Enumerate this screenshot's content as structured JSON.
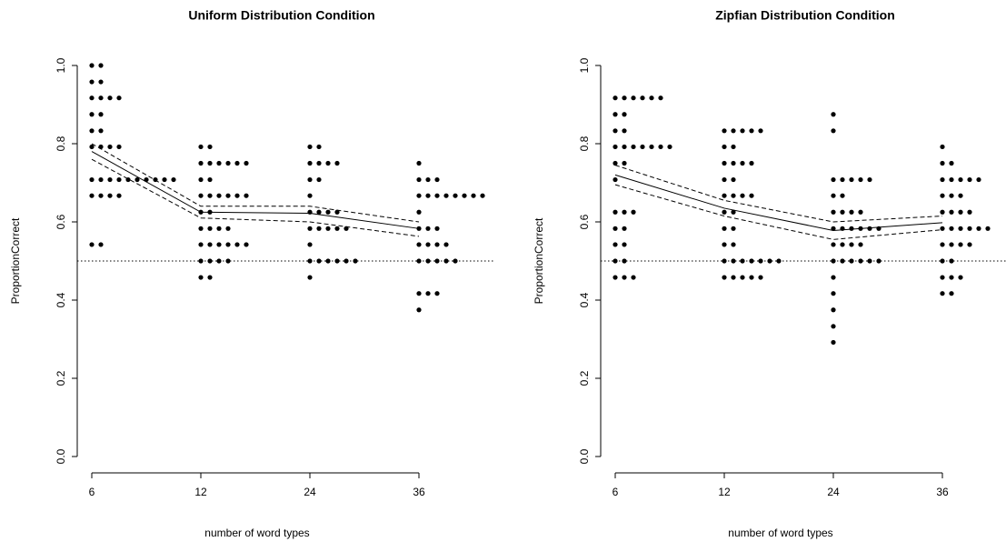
{
  "chart_data": [
    {
      "type": "dotplot",
      "title": "Uniform Distribution Condition",
      "xlabel": "number of word types",
      "ylabel": "ProportionCorrect",
      "categories": [
        "6",
        "12",
        "24",
        "36"
      ],
      "points": [
        [
          1.0,
          1.0,
          0.958,
          0.958,
          0.917,
          0.917,
          0.917,
          0.917,
          0.875,
          0.875,
          0.833,
          0.833,
          0.792,
          0.792,
          0.792,
          0.792,
          0.708,
          0.708,
          0.708,
          0.708,
          0.708,
          0.708,
          0.708,
          0.708,
          0.708,
          0.708,
          0.667,
          0.667,
          0.667,
          0.667,
          0.542,
          0.542
        ],
        [
          0.792,
          0.792,
          0.75,
          0.75,
          0.75,
          0.75,
          0.75,
          0.75,
          0.708,
          0.708,
          0.667,
          0.667,
          0.667,
          0.667,
          0.667,
          0.667,
          0.625,
          0.625,
          0.583,
          0.583,
          0.583,
          0.583,
          0.542,
          0.542,
          0.542,
          0.542,
          0.542,
          0.542,
          0.5,
          0.5,
          0.5,
          0.5,
          0.458,
          0.458
        ],
        [
          0.792,
          0.792,
          0.75,
          0.75,
          0.75,
          0.75,
          0.708,
          0.708,
          0.667,
          0.625,
          0.625,
          0.625,
          0.625,
          0.583,
          0.583,
          0.583,
          0.583,
          0.583,
          0.542,
          0.5,
          0.5,
          0.5,
          0.5,
          0.5,
          0.5,
          0.458
        ],
        [
          0.75,
          0.708,
          0.708,
          0.708,
          0.667,
          0.667,
          0.667,
          0.667,
          0.667,
          0.667,
          0.667,
          0.667,
          0.625,
          0.583,
          0.583,
          0.583,
          0.542,
          0.542,
          0.542,
          0.542,
          0.5,
          0.5,
          0.5,
          0.5,
          0.5,
          0.417,
          0.417,
          0.417,
          0.375
        ]
      ],
      "lines": [
        {
          "values": [
            0.78,
            0.625,
            0.622,
            0.583
          ],
          "style": "solid"
        },
        {
          "values": [
            0.8,
            0.64,
            0.64,
            0.6
          ],
          "style": "dashed"
        },
        {
          "values": [
            0.76,
            0.61,
            0.6,
            0.563
          ],
          "style": "dashed"
        }
      ],
      "reference_line": 0.5,
      "color": "#000000",
      "ylim": [
        0,
        1
      ],
      "yticks": [
        {
          "value": 0,
          "label": "0.0"
        },
        0.2,
        0.4,
        0.6,
        0.8,
        {
          "value": 1,
          "label": "1.0"
        }
      ]
    },
    {
      "type": "dotplot",
      "title": "Zipfian Distribution Condition",
      "xlabel": "number of word types",
      "ylabel": "ProportionCorrect",
      "categories": [
        "6",
        "12",
        "24",
        "36"
      ],
      "points": [
        [
          0.917,
          0.917,
          0.917,
          0.917,
          0.917,
          0.917,
          0.875,
          0.875,
          0.833,
          0.833,
          0.792,
          0.792,
          0.792,
          0.792,
          0.792,
          0.792,
          0.792,
          0.75,
          0.75,
          0.708,
          0.625,
          0.625,
          0.625,
          0.583,
          0.583,
          0.542,
          0.542,
          0.5,
          0.5,
          0.458,
          0.458,
          0.458
        ],
        [
          0.833,
          0.833,
          0.833,
          0.833,
          0.833,
          0.792,
          0.792,
          0.75,
          0.75,
          0.75,
          0.75,
          0.708,
          0.708,
          0.667,
          0.667,
          0.667,
          0.667,
          0.625,
          0.625,
          0.583,
          0.583,
          0.542,
          0.542,
          0.5,
          0.5,
          0.5,
          0.5,
          0.5,
          0.5,
          0.5,
          0.458,
          0.458,
          0.458,
          0.458,
          0.458
        ],
        [
          0.875,
          0.833,
          0.708,
          0.708,
          0.708,
          0.708,
          0.708,
          0.667,
          0.667,
          0.625,
          0.625,
          0.625,
          0.625,
          0.583,
          0.583,
          0.583,
          0.583,
          0.583,
          0.583,
          0.542,
          0.542,
          0.542,
          0.542,
          0.5,
          0.5,
          0.5,
          0.5,
          0.5,
          0.5,
          0.458,
          0.417,
          0.375,
          0.333,
          0.292
        ],
        [
          0.792,
          0.75,
          0.75,
          0.708,
          0.708,
          0.708,
          0.708,
          0.708,
          0.667,
          0.667,
          0.667,
          0.625,
          0.625,
          0.625,
          0.625,
          0.583,
          0.583,
          0.583,
          0.583,
          0.583,
          0.583,
          0.542,
          0.542,
          0.542,
          0.542,
          0.5,
          0.5,
          0.458,
          0.458,
          0.458,
          0.417,
          0.417
        ]
      ],
      "lines": [
        {
          "values": [
            0.72,
            0.635,
            0.578,
            0.598
          ],
          "style": "solid"
        },
        {
          "values": [
            0.745,
            0.655,
            0.6,
            0.615
          ],
          "style": "dashed"
        },
        {
          "values": [
            0.695,
            0.615,
            0.555,
            0.58
          ],
          "style": "dashed"
        }
      ],
      "reference_line": 0.5,
      "color": "#000000",
      "ylim": [
        0,
        1
      ],
      "yticks": [
        {
          "value": 0,
          "label": "0.0"
        },
        0.2,
        0.4,
        0.6,
        0.8,
        {
          "value": 1,
          "label": "1.0"
        }
      ]
    }
  ]
}
